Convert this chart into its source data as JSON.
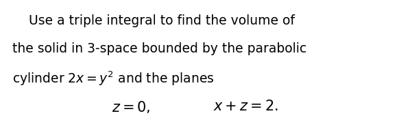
{
  "background_color": "#ffffff",
  "text_color": "#000000",
  "line1": "    Use a triple integral to find the volume of",
  "line2": "the solid in 3-space bounded by the parabolic",
  "line3": "cylinder $2x = y^2$ and the planes",
  "eq1": "$z = 0,$",
  "eq2": "$x + z = 2.$",
  "figwidth": 5.98,
  "figheight": 1.76,
  "dpi": 100,
  "fontsize": 13.5,
  "eq_fontsize": 15.0
}
